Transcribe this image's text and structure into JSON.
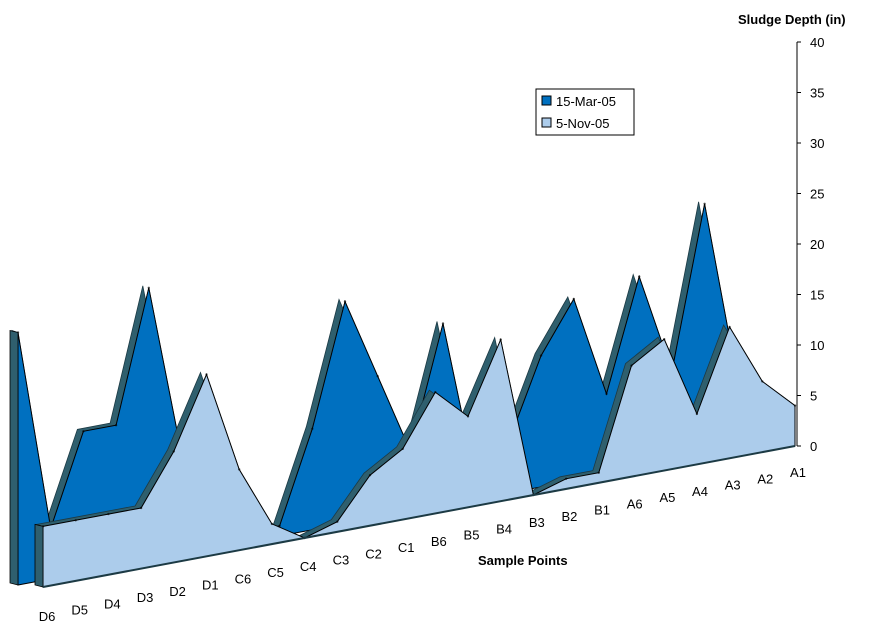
{
  "chart_data": {
    "type": "area",
    "view": "3d",
    "title": "",
    "xlabel": "Sample Points",
    "ylabel": "Sludge Depth (in)",
    "ylim": [
      0,
      40
    ],
    "yticks": [
      0,
      5,
      10,
      15,
      20,
      25,
      30,
      35,
      40
    ],
    "categories": [
      "D6",
      "D5",
      "D4",
      "D3",
      "D2",
      "D1",
      "C6",
      "C5",
      "C4",
      "C3",
      "C2",
      "C1",
      "B6",
      "B5",
      "B4",
      "B3",
      "B2",
      "B1",
      "A6",
      "A5",
      "A4",
      "A3",
      "A2",
      "A1"
    ],
    "series": [
      {
        "name": "15-Mar-05",
        "color": "#0070C0",
        "values": [
          25,
          5,
          14,
          14,
          27,
          10,
          7,
          1,
          1,
          10,
          22,
          14,
          6,
          18,
          2,
          5,
          13,
          18,
          8,
          19,
          9,
          25,
          7,
          0
        ]
      },
      {
        "name": "5-Nov-05",
        "color": "#ACCCEB",
        "values": [
          6,
          6,
          6,
          6,
          11,
          18,
          8,
          2,
          0,
          1,
          5,
          7,
          12,
          9,
          16,
          0,
          1,
          1,
          11,
          13,
          5,
          13,
          7,
          4
        ]
      }
    ],
    "legend": "upper-right",
    "grid": false
  }
}
